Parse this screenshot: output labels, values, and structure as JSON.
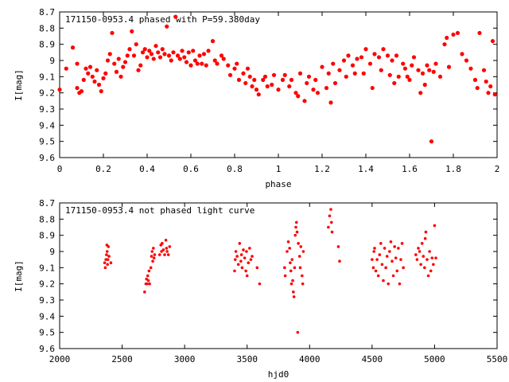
{
  "chart_data": [
    {
      "type": "scatter",
      "title": "171150-0953.4 phased with P=59.380day",
      "xlabel": "phase",
      "ylabel": "I[mag]",
      "xlim": [
        0,
        2
      ],
      "ylim": [
        9.6,
        8.7
      ],
      "y_inverted": true,
      "xticks": [
        "0",
        "0.2",
        "0.4",
        "0.6",
        "0.8",
        "1",
        "1.2",
        "1.4",
        "1.6",
        "1.8",
        "2"
      ],
      "yticks": [
        "8.7",
        "8.8",
        "8.9",
        "9",
        "9.1",
        "9.2",
        "9.3",
        "9.4",
        "9.5",
        "9.6"
      ],
      "grid": false,
      "marker_color": "#ff0000",
      "points": [
        [
          0.0,
          9.18
        ],
        [
          0.03,
          9.05
        ],
        [
          0.06,
          8.92
        ],
        [
          0.08,
          9.02
        ],
        [
          0.08,
          9.17
        ],
        [
          0.09,
          9.2
        ],
        [
          0.1,
          9.19
        ],
        [
          0.11,
          9.12
        ],
        [
          0.12,
          9.05
        ],
        [
          0.13,
          9.08
        ],
        [
          0.14,
          9.04
        ],
        [
          0.15,
          9.1
        ],
        [
          0.16,
          9.13
        ],
        [
          0.17,
          9.06
        ],
        [
          0.18,
          9.15
        ],
        [
          0.19,
          9.19
        ],
        [
          0.2,
          9.11
        ],
        [
          0.21,
          9.08
        ],
        [
          0.22,
          9.0
        ],
        [
          0.23,
          8.96
        ],
        [
          0.24,
          8.83
        ],
        [
          0.25,
          9.02
        ],
        [
          0.26,
          9.07
        ],
        [
          0.27,
          8.99
        ],
        [
          0.28,
          9.1
        ],
        [
          0.29,
          9.04
        ],
        [
          0.3,
          9.01
        ],
        [
          0.31,
          8.97
        ],
        [
          0.32,
          8.93
        ],
        [
          0.33,
          8.82
        ],
        [
          0.34,
          8.97
        ],
        [
          0.35,
          8.9
        ],
        [
          0.36,
          9.06
        ],
        [
          0.37,
          9.03
        ],
        [
          0.38,
          8.95
        ],
        [
          0.39,
          8.93
        ],
        [
          0.4,
          8.98
        ],
        [
          0.41,
          8.94
        ],
        [
          0.42,
          8.96
        ],
        [
          0.43,
          8.99
        ],
        [
          0.44,
          8.91
        ],
        [
          0.45,
          8.95
        ],
        [
          0.46,
          8.98
        ],
        [
          0.47,
          8.93
        ],
        [
          0.48,
          8.96
        ],
        [
          0.49,
          8.79
        ],
        [
          0.5,
          8.97
        ],
        [
          0.51,
          9.0
        ],
        [
          0.52,
          8.95
        ],
        [
          0.53,
          8.73
        ],
        [
          0.54,
          8.97
        ],
        [
          0.55,
          8.99
        ],
        [
          0.56,
          8.94
        ],
        [
          0.57,
          8.98
        ],
        [
          0.58,
          9.01
        ],
        [
          0.59,
          8.95
        ],
        [
          0.6,
          9.03
        ],
        [
          0.61,
          8.94
        ],
        [
          0.62,
          9.0
        ],
        [
          0.63,
          9.02
        ],
        [
          0.64,
          8.97
        ],
        [
          0.65,
          9.02
        ],
        [
          0.66,
          8.96
        ],
        [
          0.67,
          9.03
        ],
        [
          0.68,
          8.94
        ],
        [
          0.7,
          8.88
        ],
        [
          0.71,
          9.0
        ],
        [
          0.72,
          9.02
        ],
        [
          0.74,
          8.97
        ],
        [
          0.75,
          8.99
        ],
        [
          0.77,
          9.03
        ],
        [
          0.78,
          9.09
        ],
        [
          0.8,
          9.05
        ],
        [
          0.81,
          9.02
        ],
        [
          0.82,
          9.12
        ],
        [
          0.84,
          9.08
        ],
        [
          0.85,
          9.14
        ],
        [
          0.86,
          9.05
        ],
        [
          0.87,
          9.1
        ],
        [
          0.88,
          9.16
        ],
        [
          0.89,
          9.12
        ],
        [
          0.9,
          9.18
        ],
        [
          0.91,
          9.21
        ],
        [
          0.93,
          9.12
        ],
        [
          0.94,
          9.1
        ],
        [
          0.95,
          9.16
        ],
        [
          0.97,
          9.15
        ],
        [
          0.98,
          9.09
        ],
        [
          1.0,
          9.18
        ],
        [
          1.02,
          9.12
        ],
        [
          1.03,
          9.09
        ],
        [
          1.05,
          9.16
        ],
        [
          1.06,
          9.12
        ],
        [
          1.08,
          9.2
        ],
        [
          1.09,
          9.22
        ],
        [
          1.1,
          9.08
        ],
        [
          1.12,
          9.25
        ],
        [
          1.13,
          9.14
        ],
        [
          1.14,
          9.1
        ],
        [
          1.16,
          9.18
        ],
        [
          1.17,
          9.12
        ],
        [
          1.18,
          9.2
        ],
        [
          1.2,
          9.04
        ],
        [
          1.22,
          9.17
        ],
        [
          1.23,
          9.08
        ],
        [
          1.24,
          9.26
        ],
        [
          1.25,
          9.02
        ],
        [
          1.26,
          9.14
        ],
        [
          1.28,
          9.06
        ],
        [
          1.3,
          9.0
        ],
        [
          1.31,
          9.1
        ],
        [
          1.32,
          8.97
        ],
        [
          1.34,
          9.03
        ],
        [
          1.35,
          9.08
        ],
        [
          1.36,
          8.99
        ],
        [
          1.38,
          8.98
        ],
        [
          1.39,
          9.08
        ],
        [
          1.4,
          8.93
        ],
        [
          1.42,
          9.02
        ],
        [
          1.43,
          9.17
        ],
        [
          1.44,
          8.96
        ],
        [
          1.46,
          8.98
        ],
        [
          1.47,
          9.06
        ],
        [
          1.48,
          8.93
        ],
        [
          1.5,
          8.97
        ],
        [
          1.51,
          9.09
        ],
        [
          1.52,
          9.0
        ],
        [
          1.53,
          9.14
        ],
        [
          1.54,
          8.97
        ],
        [
          1.55,
          9.1
        ],
        [
          1.57,
          9.02
        ],
        [
          1.58,
          9.05
        ],
        [
          1.59,
          9.1
        ],
        [
          1.6,
          9.12
        ],
        [
          1.61,
          9.03
        ],
        [
          1.62,
          8.98
        ],
        [
          1.64,
          9.06
        ],
        [
          1.65,
          9.2
        ],
        [
          1.66,
          9.08
        ],
        [
          1.67,
          9.15
        ],
        [
          1.68,
          9.03
        ],
        [
          1.69,
          9.06
        ],
        [
          1.7,
          9.5
        ],
        [
          1.71,
          9.07
        ],
        [
          1.72,
          9.02
        ],
        [
          1.74,
          9.1
        ],
        [
          1.76,
          8.9
        ],
        [
          1.77,
          8.86
        ],
        [
          1.78,
          9.04
        ],
        [
          1.8,
          8.84
        ],
        [
          1.82,
          8.83
        ],
        [
          1.84,
          8.96
        ],
        [
          1.86,
          9.0
        ],
        [
          1.88,
          9.05
        ],
        [
          1.9,
          9.12
        ],
        [
          1.91,
          9.17
        ],
        [
          1.92,
          8.83
        ],
        [
          1.94,
          9.06
        ],
        [
          1.95,
          9.13
        ],
        [
          1.96,
          9.2
        ],
        [
          1.97,
          9.16
        ],
        [
          1.98,
          8.88
        ],
        [
          1.99,
          9.21
        ]
      ]
    },
    {
      "type": "scatter",
      "title": "171150-0953.4 not phased light curve",
      "xlabel": "hjd0",
      "ylabel": "I[mag]",
      "xlim": [
        2000,
        5500
      ],
      "ylim": [
        9.6,
        8.7
      ],
      "y_inverted": true,
      "xticks": [
        "2000",
        "2500",
        "3000",
        "3500",
        "4000",
        "4500",
        "5000",
        "5500"
      ],
      "yticks": [
        "8.7",
        "8.8",
        "8.9",
        "9",
        "9.1",
        "9.2",
        "9.3",
        "9.4",
        "9.5",
        "9.6"
      ],
      "grid": false,
      "marker_color": "#ff0000",
      "points": [
        [
          2360,
          9.07
        ],
        [
          2365,
          9.1
        ],
        [
          2370,
          9.05
        ],
        [
          2375,
          9.02
        ],
        [
          2378,
          8.96
        ],
        [
          2380,
          9.0
        ],
        [
          2383,
          9.08
        ],
        [
          2386,
          9.05
        ],
        [
          2390,
          8.97
        ],
        [
          2395,
          9.03
        ],
        [
          2410,
          9.07
        ],
        [
          2680,
          9.25
        ],
        [
          2690,
          9.2
        ],
        [
          2695,
          9.17
        ],
        [
          2700,
          9.2
        ],
        [
          2705,
          9.15
        ],
        [
          2710,
          9.18
        ],
        [
          2715,
          9.12
        ],
        [
          2720,
          9.2
        ],
        [
          2730,
          9.1
        ],
        [
          2735,
          9.03
        ],
        [
          2740,
          9.0
        ],
        [
          2745,
          9.06
        ],
        [
          2750,
          8.98
        ],
        [
          2755,
          9.04
        ],
        [
          2760,
          9.02
        ],
        [
          2800,
          9.02
        ],
        [
          2810,
          8.96
        ],
        [
          2815,
          9.0
        ],
        [
          2820,
          8.95
        ],
        [
          2830,
          8.99
        ],
        [
          2840,
          9.02
        ],
        [
          2850,
          8.93
        ],
        [
          2855,
          8.98
        ],
        [
          2860,
          9.0
        ],
        [
          2870,
          9.02
        ],
        [
          2880,
          8.97
        ],
        [
          3400,
          9.12
        ],
        [
          3405,
          9.05
        ],
        [
          3410,
          9.0
        ],
        [
          3420,
          9.03
        ],
        [
          3430,
          9.08
        ],
        [
          3440,
          8.95
        ],
        [
          3450,
          9.06
        ],
        [
          3455,
          9.02
        ],
        [
          3460,
          9.1
        ],
        [
          3470,
          8.99
        ],
        [
          3480,
          9.04
        ],
        [
          3490,
          9.12
        ],
        [
          3495,
          9.0
        ],
        [
          3500,
          9.15
        ],
        [
          3510,
          9.07
        ],
        [
          3520,
          8.98
        ],
        [
          3530,
          9.05
        ],
        [
          3540,
          9.03
        ],
        [
          3580,
          9.1
        ],
        [
          3600,
          9.2
        ],
        [
          3800,
          9.1
        ],
        [
          3805,
          9.15
        ],
        [
          3820,
          9.0
        ],
        [
          3830,
          8.94
        ],
        [
          3840,
          8.98
        ],
        [
          3845,
          9.07
        ],
        [
          3850,
          9.12
        ],
        [
          3855,
          9.2
        ],
        [
          3860,
          9.05
        ],
        [
          3865,
          9.18
        ],
        [
          3870,
          9.25
        ],
        [
          3875,
          9.28
        ],
        [
          3880,
          9.1
        ],
        [
          3885,
          8.9
        ],
        [
          3890,
          8.85
        ],
        [
          3895,
          8.82
        ],
        [
          3900,
          8.88
        ],
        [
          3905,
          9.5
        ],
        [
          3910,
          8.95
        ],
        [
          3920,
          9.03
        ],
        [
          3925,
          9.1
        ],
        [
          3930,
          8.97
        ],
        [
          3940,
          9.15
        ],
        [
          3945,
          9.2
        ],
        [
          3950,
          9.0
        ],
        [
          4150,
          8.85
        ],
        [
          4160,
          8.78
        ],
        [
          4170,
          8.74
        ],
        [
          4175,
          8.82
        ],
        [
          4180,
          8.88
        ],
        [
          4230,
          8.97
        ],
        [
          4240,
          9.06
        ],
        [
          4500,
          9.05
        ],
        [
          4510,
          9.1
        ],
        [
          4515,
          9.0
        ],
        [
          4520,
          8.98
        ],
        [
          4530,
          9.12
        ],
        [
          4540,
          9.05
        ],
        [
          4550,
          9.15
        ],
        [
          4560,
          9.02
        ],
        [
          4570,
          8.95
        ],
        [
          4580,
          9.08
        ],
        [
          4590,
          9.18
        ],
        [
          4600,
          8.98
        ],
        [
          4610,
          9.1
        ],
        [
          4620,
          9.03
        ],
        [
          4630,
          9.2
        ],
        [
          4640,
          9.0
        ],
        [
          4650,
          8.94
        ],
        [
          4660,
          9.06
        ],
        [
          4670,
          9.15
        ],
        [
          4680,
          8.97
        ],
        [
          4690,
          9.04
        ],
        [
          4700,
          9.12
        ],
        [
          4710,
          8.98
        ],
        [
          4720,
          9.2
        ],
        [
          4730,
          9.05
        ],
        [
          4740,
          8.95
        ],
        [
          4750,
          9.1
        ],
        [
          4850,
          9.02
        ],
        [
          4860,
          9.05
        ],
        [
          4870,
          8.98
        ],
        [
          4880,
          9.0
        ],
        [
          4890,
          9.08
        ],
        [
          4900,
          8.95
        ],
        [
          4910,
          9.03
        ],
        [
          4920,
          9.1
        ],
        [
          4925,
          8.92
        ],
        [
          4930,
          8.88
        ],
        [
          4940,
          9.05
        ],
        [
          4950,
          9.15
        ],
        [
          4960,
          9.0
        ],
        [
          4970,
          9.12
        ],
        [
          4980,
          9.04
        ],
        [
          4990,
          9.08
        ],
        [
          5000,
          8.84
        ],
        [
          5010,
          9.04
        ]
      ]
    }
  ]
}
